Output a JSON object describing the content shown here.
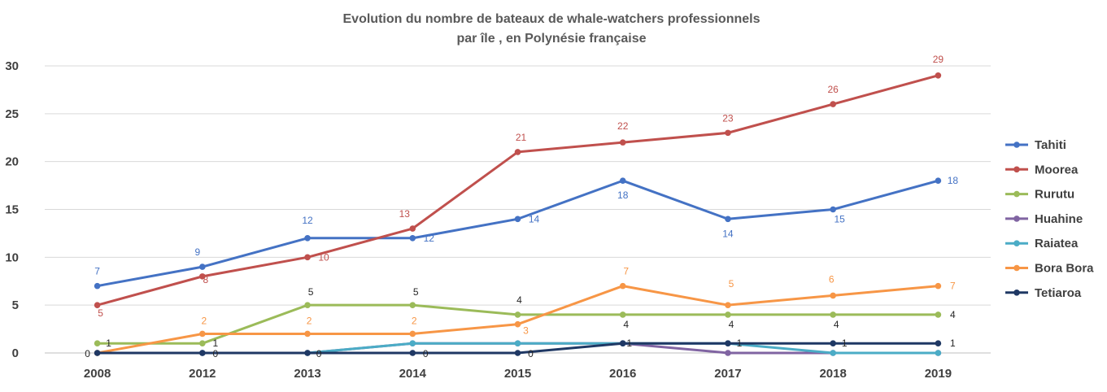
{
  "chart_data": {
    "type": "line",
    "title": "Evolution du nombre de bateaux de whale-watchers professionnels",
    "subtitle": "par île , en Polynésie française",
    "x": [
      "2008",
      "2012",
      "2013",
      "2014",
      "2015",
      "2016",
      "2017",
      "2018",
      "2019"
    ],
    "ylim": [
      0,
      30
    ],
    "yticks": [
      "0",
      "5",
      "10",
      "15",
      "20",
      "25",
      "30"
    ],
    "grid": true,
    "legend_position": "right",
    "series": [
      {
        "name": "Tahiti",
        "color": "#4472C4",
        "values": [
          7,
          9,
          12,
          12,
          14,
          18,
          14,
          15,
          18
        ],
        "labels": [
          "7",
          "9",
          "12",
          "12",
          "14",
          "18",
          "14",
          "15",
          "18"
        ]
      },
      {
        "name": "Moorea",
        "color": "#C0504D",
        "values": [
          5,
          8,
          10,
          13,
          21,
          22,
          23,
          26,
          29
        ],
        "labels": [
          "5",
          "8",
          "10",
          "13",
          "21",
          "22",
          "23",
          "26",
          "29"
        ]
      },
      {
        "name": "Rurutu",
        "color": "#9BBB59",
        "values": [
          1,
          1,
          5,
          5,
          4,
          4,
          4,
          4,
          4
        ],
        "labels": [
          "1",
          "1",
          "5",
          "5",
          "4",
          "4",
          "4",
          "4",
          "4"
        ]
      },
      {
        "name": "Huahine",
        "color": "#8064A2",
        "values": [
          0,
          0,
          0,
          1,
          1,
          1,
          0,
          0,
          0
        ],
        "labels": []
      },
      {
        "name": "Raiatea",
        "color": "#4BACC6",
        "values": [
          0,
          0,
          0,
          1,
          1,
          1,
          1,
          0,
          0
        ],
        "labels": []
      },
      {
        "name": "Bora Bora",
        "color": "#F79646",
        "values": [
          0,
          2,
          2,
          2,
          3,
          7,
          5,
          6,
          7
        ],
        "labels": [
          "",
          "2",
          "2",
          "2",
          "3",
          "7",
          "5",
          "6",
          "7"
        ]
      },
      {
        "name": "Tetiaroa",
        "color": "#1F3864",
        "values": [
          0,
          0,
          0,
          0,
          0,
          1,
          1,
          1,
          1
        ],
        "labels": [
          "0",
          "0",
          "0",
          "0",
          "0",
          "1",
          "1",
          "1",
          "1"
        ]
      }
    ]
  }
}
